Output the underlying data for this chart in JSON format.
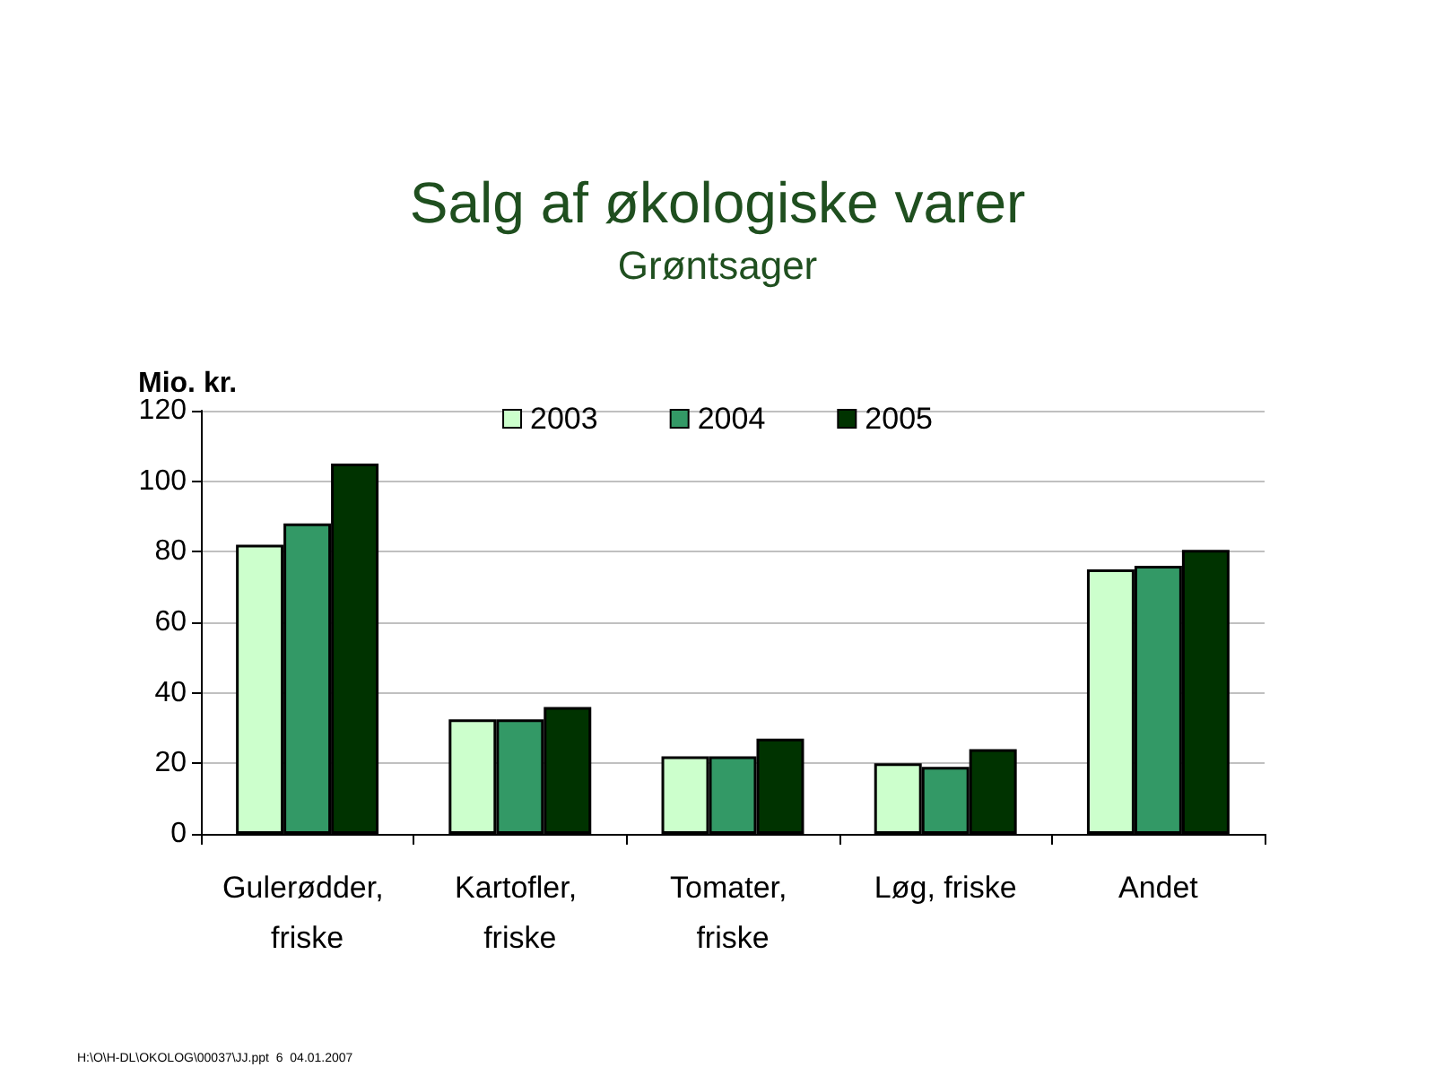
{
  "chart_data": {
    "type": "bar",
    "title": "Salg af økologiske varer",
    "subtitle": "Grøntsager",
    "ylabel": "Mio. kr.",
    "categories": [
      "Gulerødder, friske",
      "Kartofler, friske",
      "Tomater, friske",
      "Løg, friske",
      "Andet"
    ],
    "series": [
      {
        "name": "2003",
        "color": "#ccffcc",
        "values": [
          82,
          32.5,
          22,
          20,
          75
        ]
      },
      {
        "name": "2004",
        "color": "#339966",
        "values": [
          88,
          32.5,
          22,
          19,
          76
        ]
      },
      {
        "name": "2005",
        "color": "#003300",
        "values": [
          105,
          36,
          27,
          24,
          80.5
        ]
      }
    ],
    "ylim": [
      0,
      120
    ],
    "yticks": [
      0,
      20,
      40,
      60,
      80,
      100,
      120
    ],
    "grid": "y",
    "legend": "top",
    "annotations": [
      "H:\\O\\H-DL\\OKOLOG\\00037\\JJ.ppt  6  04.01.2007"
    ]
  }
}
